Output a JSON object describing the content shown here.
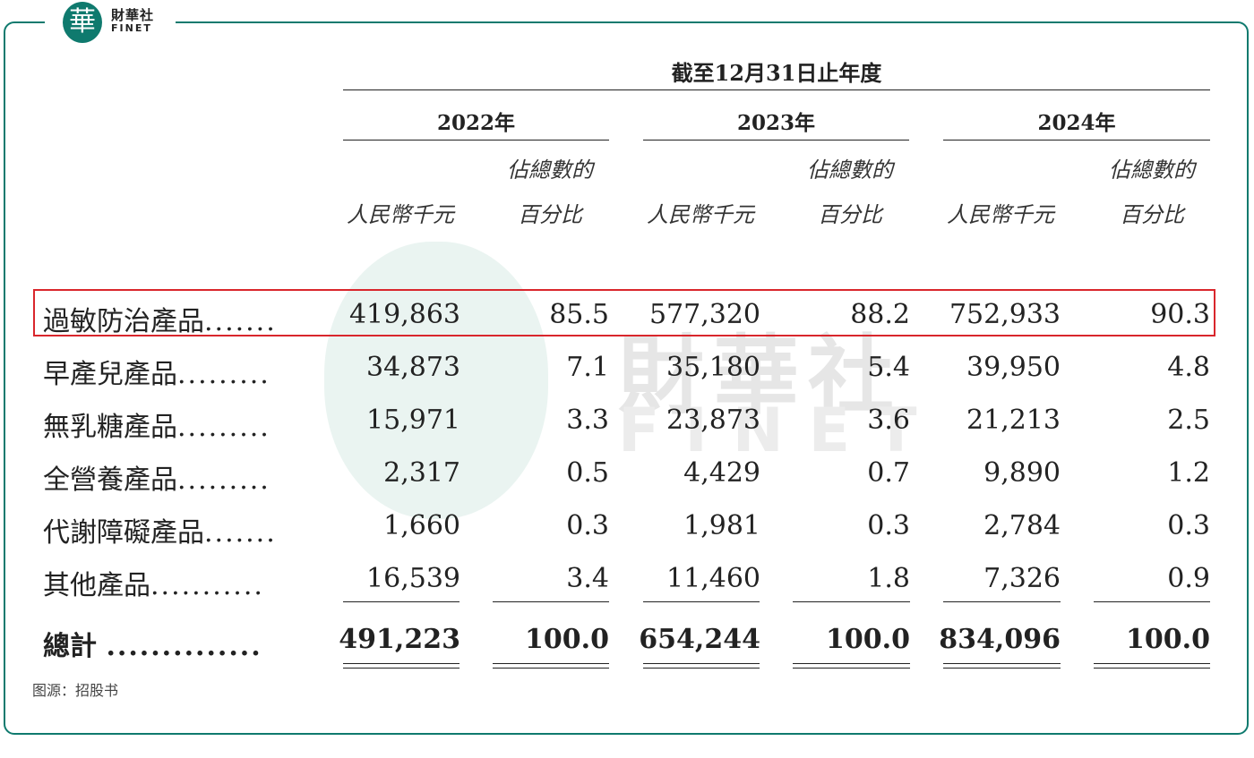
{
  "logo": {
    "badge_char": "華",
    "cn": "財華社",
    "en": "FINET"
  },
  "watermark": {
    "cn": "財華社",
    "en": "FINET"
  },
  "table": {
    "period_title": "截至12月31日止年度",
    "years": [
      {
        "label": "2022年",
        "unit": "人民幣千元",
        "pct_line1": "佔總數的",
        "pct_line2": "百分比"
      },
      {
        "label": "2023年",
        "unit": "人民幣千元",
        "pct_line1": "佔總數的",
        "pct_line2": "百分比"
      },
      {
        "label": "2024年",
        "unit": "人民幣千元",
        "pct_line1": "佔總數的",
        "pct_line2": "百分比"
      }
    ],
    "rows": [
      {
        "label": "過敏防治產品",
        "dots": ".......",
        "values": [
          "419,863",
          "85.5",
          "577,320",
          "88.2",
          "752,933",
          "90.3"
        ]
      },
      {
        "label": "早產兒產品",
        "dots": ".........",
        "values": [
          "34,873",
          "7.1",
          "35,180",
          "5.4",
          "39,950",
          "4.8"
        ]
      },
      {
        "label": "無乳糖產品",
        "dots": ".........",
        "values": [
          "15,971",
          "3.3",
          "23,873",
          "3.6",
          "21,213",
          "2.5"
        ]
      },
      {
        "label": "全營養產品",
        "dots": ".........",
        "values": [
          "2,317",
          "0.5",
          "4,429",
          "0.7",
          "9,890",
          "1.2"
        ]
      },
      {
        "label": "代謝障礙產品",
        "dots": ".......",
        "values": [
          "1,660",
          "0.3",
          "1,981",
          "0.3",
          "2,784",
          "0.3"
        ]
      },
      {
        "label": "其他產品",
        "dots": "...........",
        "values": [
          "16,539",
          "3.4",
          "11,460",
          "1.8",
          "7,326",
          "0.9"
        ]
      }
    ],
    "total": {
      "label": "總計",
      "dots": "..............",
      "values": [
        "491,223",
        "100.0",
        "654,244",
        "100.0",
        "834,096",
        "100.0"
      ]
    },
    "highlighted_row": "過敏防治產品"
  },
  "source": "图源：招股书",
  "colors": {
    "frame": "#0f7a6e",
    "highlight": "#d9262c",
    "text": "#222222"
  }
}
